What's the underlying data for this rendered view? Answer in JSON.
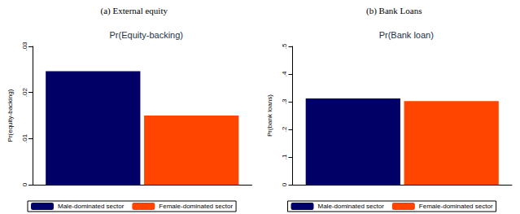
{
  "chart_data": [
    {
      "type": "bar",
      "caption": "(a) External equity",
      "title": "Pr(Equity-backing)",
      "y_label": "Pr(equity-backing)",
      "categories": [
        null
      ],
      "series": [
        {
          "name": "Male-dominated sector",
          "color": "#000066",
          "values": [
            0.0246
          ]
        },
        {
          "name": "Female-dominated sector",
          "color": "#ff4500",
          "values": [
            0.015
          ]
        }
      ],
      "ylim": [
        0,
        0.03
      ],
      "yticks": [
        0,
        {
          "value": 0.01,
          "label": ".01"
        },
        {
          "value": 0.02,
          "label": ".02"
        },
        {
          "value": 0.03,
          "label": ".03"
        }
      ],
      "grid": false,
      "legend": "bottom",
      "tick_labels": "y"
    },
    {
      "type": "bar",
      "caption": "(b) Bank Loans",
      "title": "Pr(Bank loan)",
      "y_label": "Pr(bank loans)",
      "categories": [
        null
      ],
      "series": [
        {
          "name": "Male-dominated sector",
          "color": "#000066",
          "values": [
            0.312
          ]
        },
        {
          "name": "Female-dominated sector",
          "color": "#ff4500",
          "values": [
            0.302
          ]
        }
      ],
      "ylim": [
        0,
        0.5
      ],
      "yticks": [
        0,
        {
          "value": 0.1,
          "label": ".1"
        },
        {
          "value": 0.2,
          "label": ".2"
        },
        {
          "value": 0.3,
          "label": ".3"
        },
        {
          "value": 0.4,
          "label": ".4"
        },
        {
          "value": 0.5,
          "label": ".5"
        }
      ],
      "grid": false,
      "legend": "bottom",
      "tick_labels": "y"
    }
  ]
}
